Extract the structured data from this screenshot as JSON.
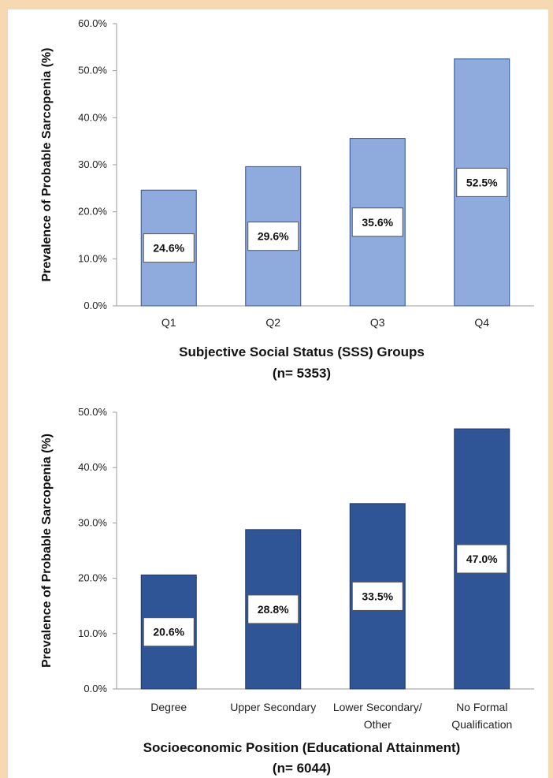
{
  "chart_data": [
    {
      "type": "bar",
      "title": "",
      "ylabel": "Prevalence of Probable Sarcopenia (%)",
      "xlabel": [
        "Subjective Social Status (SSS) Groups",
        "(n= 5353)"
      ],
      "categories": [
        [
          "Q1"
        ],
        [
          "Q2"
        ],
        [
          "Q3"
        ],
        [
          "Q4"
        ]
      ],
      "values": [
        24.6,
        29.6,
        35.6,
        52.5
      ],
      "value_labels": [
        "24.6%",
        "29.6%",
        "35.6%",
        "52.5%"
      ],
      "ylim": [
        0,
        60
      ],
      "yticks": [
        0,
        10,
        20,
        30,
        40,
        50,
        60
      ],
      "ytick_labels": [
        "0.0%",
        "10.0%",
        "20.0%",
        "30.0%",
        "40.0%",
        "50.0%",
        "60.0%"
      ],
      "grid": false,
      "color": "#8faadc",
      "edge_color": "#2f5597"
    },
    {
      "type": "bar",
      "title": "",
      "ylabel": "Prevalence of Probable Sarcopenia (%)",
      "xlabel": [
        "Socioeconomic Position (Educational Attainment)",
        "(n= 6044)"
      ],
      "categories": [
        [
          "Degree"
        ],
        [
          "Upper Secondary"
        ],
        [
          "Lower Secondary/",
          "Other"
        ],
        [
          "No Formal",
          "Qualification"
        ]
      ],
      "values": [
        20.6,
        28.8,
        33.5,
        47.0
      ],
      "value_labels": [
        "20.6%",
        "28.8%",
        "33.5%",
        "47.0%"
      ],
      "ylim": [
        0,
        50
      ],
      "yticks": [
        0,
        10,
        20,
        30,
        40,
        50
      ],
      "ytick_labels": [
        "0.0%",
        "10.0%",
        "20.0%",
        "30.0%",
        "40.0%",
        "50.0%"
      ],
      "grid": false,
      "color": "#2f5597",
      "edge_color": "#1f3864"
    }
  ]
}
